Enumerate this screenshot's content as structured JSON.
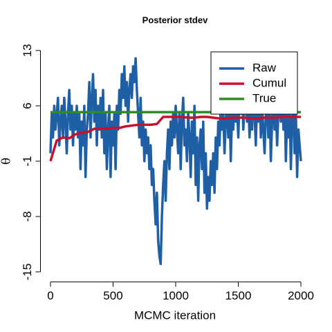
{
  "chart_data": {
    "type": "line",
    "title": "Posterior stdev",
    "xlabel": "MCMC iteration",
    "ylabel": "θ",
    "xlim": [
      -80,
      2080
    ],
    "ylim": [
      -16.1,
      14.1
    ],
    "xticks": [
      0,
      500,
      1000,
      1500,
      2000
    ],
    "yticks": [
      -15,
      -8,
      -1,
      6,
      13
    ],
    "legend": "topright",
    "series": [
      {
        "name": "Raw",
        "color": "#1f5fa6",
        "x": [
          0,
          10,
          20,
          30,
          40,
          50,
          60,
          70,
          80,
          90,
          100,
          110,
          120,
          130,
          140,
          150,
          160,
          170,
          180,
          190,
          200,
          210,
          220,
          230,
          240,
          250,
          260,
          270,
          280,
          290,
          300,
          310,
          320,
          330,
          340,
          350,
          360,
          370,
          380,
          390,
          400,
          410,
          420,
          430,
          440,
          450,
          460,
          470,
          480,
          490,
          500,
          510,
          520,
          530,
          540,
          550,
          560,
          570,
          580,
          590,
          600,
          610,
          620,
          630,
          640,
          650,
          660,
          670,
          680,
          690,
          700,
          710,
          720,
          730,
          740,
          750,
          760,
          770,
          780,
          790,
          800,
          810,
          820,
          830,
          840,
          850,
          860,
          870,
          880,
          890,
          900,
          910,
          920,
          930,
          940,
          950,
          960,
          970,
          980,
          990,
          1000,
          1010,
          1020,
          1030,
          1040,
          1050,
          1060,
          1070,
          1080,
          1090,
          1100,
          1110,
          1120,
          1130,
          1140,
          1150,
          1160,
          1170,
          1180,
          1190,
          1200,
          1210,
          1220,
          1230,
          1240,
          1250,
          1260,
          1270,
          1280,
          1290,
          1300,
          1310,
          1320,
          1330,
          1340,
          1350,
          1360,
          1370,
          1380,
          1390,
          1400,
          1410,
          1420,
          1430,
          1440,
          1450,
          1460,
          1470,
          1480,
          1490,
          1500,
          1510,
          1520,
          1530,
          1540,
          1550,
          1560,
          1570,
          1580,
          1590,
          1600,
          1610,
          1620,
          1630,
          1640,
          1650,
          1660,
          1670,
          1680,
          1690,
          1700,
          1710,
          1720,
          1730,
          1740,
          1750,
          1760,
          1770,
          1780,
          1790,
          1800,
          1810,
          1820,
          1830,
          1840,
          1850,
          1860,
          1870,
          1880,
          1890,
          1900,
          1910,
          1920,
          1930,
          1940,
          1950,
          1960,
          1970,
          1980,
          1990,
          2000
        ],
        "values": [
          0,
          5,
          2,
          6,
          3,
          5,
          7,
          1,
          4,
          6,
          2,
          7,
          4,
          0,
          5,
          8,
          3,
          6,
          1,
          5,
          3,
          6,
          2,
          5,
          -2,
          4,
          1,
          6,
          -3,
          3,
          5,
          9,
          2,
          7,
          10,
          4,
          8,
          1,
          6,
          3,
          7,
          2,
          8,
          0,
          5,
          -2,
          3,
          6,
          -3,
          4,
          1,
          5,
          -2,
          6,
          3,
          8,
          5,
          10,
          7,
          11,
          6,
          9,
          4,
          8,
          10,
          7,
          11,
          9,
          12,
          8,
          5,
          2,
          7,
          1,
          4,
          -1,
          3,
          0,
          2,
          -2,
          1,
          -4,
          -2,
          -6,
          -9,
          -5,
          -11,
          -13,
          -14,
          -8,
          -4,
          -1,
          -6,
          0,
          3,
          -2,
          4,
          1,
          5,
          2,
          6,
          3,
          0,
          5,
          -2,
          4,
          7,
          1,
          3,
          -1,
          5,
          2,
          -3,
          4,
          0,
          6,
          -4,
          2,
          -6,
          1,
          3,
          -2,
          4,
          -5,
          0,
          -7,
          -3,
          -6,
          -1,
          -4,
          0,
          -5,
          2,
          -2,
          4,
          1,
          6,
          3,
          5,
          0,
          4,
          7,
          2,
          6,
          -1,
          5,
          3,
          8,
          4,
          6,
          2,
          7,
          5,
          9,
          3,
          6,
          8,
          4,
          7,
          2,
          6,
          3,
          8,
          5,
          1,
          7,
          4,
          9,
          2,
          6,
          3,
          0,
          5,
          7,
          2,
          6,
          -1,
          4,
          8,
          3,
          6,
          1,
          5,
          8,
          4,
          12.5,
          3,
          7,
          -1,
          5,
          2,
          6,
          -2,
          4,
          7,
          0,
          5,
          -3,
          3,
          1,
          -1
        ]
      },
      {
        "name": "Cumul",
        "color": "#c8102e",
        "x": [
          0,
          50,
          100,
          150,
          200,
          250,
          300,
          350,
          400,
          450,
          500,
          550,
          600,
          650,
          700,
          750,
          800,
          850,
          900,
          950,
          1000,
          1050,
          1100,
          1150,
          1200,
          1250,
          1300,
          1350,
          1400,
          1450,
          1500,
          1550,
          1600,
          1650,
          1700,
          1750,
          1800,
          1850,
          1900,
          1950,
          2000
        ],
        "values": [
          -1,
          1.6,
          2,
          1.9,
          2.4,
          2.6,
          2.7,
          3.1,
          3.1,
          3.1,
          3.2,
          3.2,
          3.4,
          3.5,
          3.6,
          3.6,
          3.6,
          3.7,
          4.6,
          4.6,
          4.6,
          4.6,
          4.5,
          4.5,
          4.6,
          4.6,
          4.5,
          4.4,
          4.4,
          4.5,
          4.5,
          4.5,
          4.4,
          4.4,
          4.5,
          4.5,
          4.5,
          4.6,
          4.6,
          4.6,
          4.6
        ]
      },
      {
        "name": "True",
        "color": "#2e8b22",
        "x": [
          0,
          2000
        ],
        "values": [
          5.2,
          5.2
        ]
      }
    ]
  }
}
